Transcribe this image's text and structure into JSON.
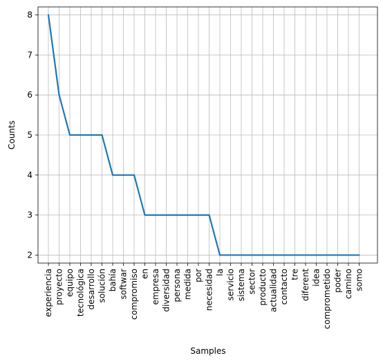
{
  "chart_data": {
    "type": "line",
    "xlabel": "Samples",
    "ylabel": "Counts",
    "grid": true,
    "ylim": [
      1.8,
      8.2
    ],
    "yticks": [
      2,
      3,
      4,
      5,
      6,
      7,
      8
    ],
    "line_color": "#1f77b4",
    "grid_color": "#b0b0b0",
    "categories": [
      "experiencia",
      "proyecto",
      "equipo",
      "tecnológica",
      "desarrollo",
      "solución",
      "bahía",
      "softwar",
      "compromiso",
      "en",
      "empresa",
      "diversidad",
      "persona",
      "medida",
      "por",
      "necesidad",
      "la",
      "servicio",
      "sistema",
      "sector",
      "producto",
      "actualidad",
      "contacto",
      "tre",
      "diferent",
      "idea",
      "comprometido",
      "poder",
      "camino",
      "somo"
    ],
    "values": [
      8,
      6,
      5,
      5,
      5,
      5,
      4,
      4,
      4,
      3,
      3,
      3,
      3,
      3,
      3,
      3,
      2,
      2,
      2,
      2,
      2,
      2,
      2,
      2,
      2,
      2,
      2,
      2,
      2,
      2
    ]
  }
}
